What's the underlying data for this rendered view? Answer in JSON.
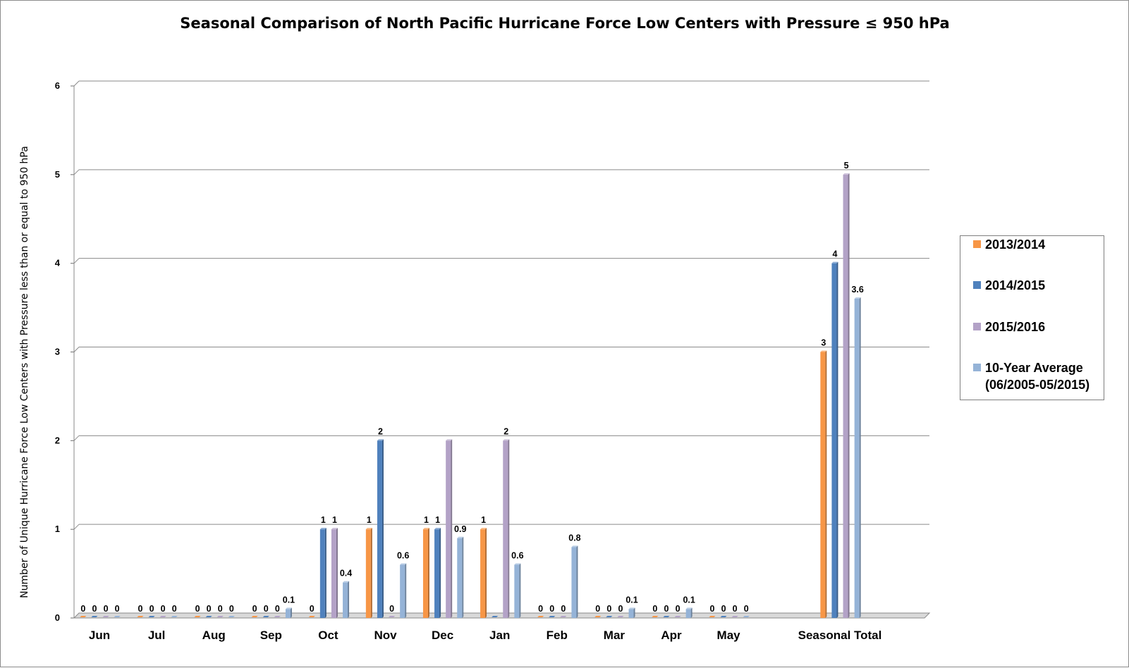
{
  "chart_data": {
    "type": "bar",
    "title": "Seasonal Comparison of North Pacific Hurricane Force Low Centers with Pressure ≤ 950 hPa",
    "ylabel": "Number of Unique Hurricane Force Low Centers with Pressure less than or equal to 950 hPa",
    "xlabel": "",
    "ylim": [
      0,
      6
    ],
    "yticks": [
      "0",
      "1",
      "2",
      "3",
      "4",
      "5",
      "6"
    ],
    "grid": true,
    "legend_position": "right",
    "categories": [
      "Jun",
      "Jul",
      "Aug",
      "Sep",
      "Oct",
      "Nov",
      "Dec",
      "Jan",
      "Feb",
      "Mar",
      "Apr",
      "May",
      "Seasonal Total"
    ],
    "series": [
      {
        "name": "2013/2014",
        "color": "#f79646",
        "values": [
          0,
          0,
          0,
          0,
          0,
          1,
          1,
          1,
          0,
          0,
          0,
          0,
          3
        ],
        "labels": [
          "0",
          "0",
          "0",
          "0",
          "0",
          "1",
          "1",
          "1",
          "0",
          "0",
          "0",
          "0",
          "3"
        ]
      },
      {
        "name": "2014/2015",
        "color": "#4f81bd",
        "values": [
          0,
          0,
          0,
          0,
          1,
          2,
          1,
          0,
          0,
          0,
          0,
          0,
          4
        ],
        "labels": [
          "0",
          "0",
          "0",
          "0",
          "1",
          "2",
          "1",
          "0",
          "0",
          "0",
          "0",
          "0",
          "4"
        ]
      },
      {
        "name": "2015/2016",
        "color": "#b3a2c7",
        "values": [
          0,
          0,
          0,
          0,
          1,
          0,
          2,
          2,
          0,
          0,
          0,
          0,
          5
        ],
        "labels": [
          "0",
          "0",
          "0",
          "0",
          "1",
          "0",
          "2",
          "2",
          "0",
          "0",
          "0",
          "0",
          "5"
        ]
      },
      {
        "name": "10-Year Average (06/2005-05/2015)",
        "color": "#95b3d7",
        "values": [
          0,
          0,
          0,
          0.1,
          0.4,
          0.6,
          0.9,
          0.6,
          0.8,
          0.1,
          0.1,
          0,
          3.6
        ],
        "labels": [
          "0",
          "0",
          "0",
          "0.1",
          "0.4",
          "0.6",
          "0.9",
          "0.6",
          "0.8",
          "0.1",
          "0.1",
          "0",
          "3.6"
        ]
      }
    ],
    "visible_data_labels": [
      [
        true,
        true,
        true,
        true,
        true,
        true,
        true,
        true,
        true,
        true,
        true,
        true,
        true
      ],
      [
        true,
        true,
        true,
        true,
        true,
        true,
        true,
        false,
        true,
        true,
        true,
        true,
        true
      ],
      [
        true,
        true,
        true,
        true,
        true,
        true,
        false,
        true,
        true,
        true,
        true,
        true,
        true
      ],
      [
        true,
        true,
        true,
        true,
        true,
        true,
        true,
        true,
        true,
        true,
        true,
        true,
        true
      ]
    ]
  },
  "legend": {
    "items": [
      {
        "lines": [
          "2013/2014"
        ],
        "color": "#f79646"
      },
      {
        "lines": [
          "2014/2015"
        ],
        "color": "#4f81bd"
      },
      {
        "lines": [
          "2015/2016"
        ],
        "color": "#b3a2c7"
      },
      {
        "lines": [
          "10-Year Average",
          "(06/2005-05/2015)"
        ],
        "color": "#95b3d7"
      }
    ]
  }
}
